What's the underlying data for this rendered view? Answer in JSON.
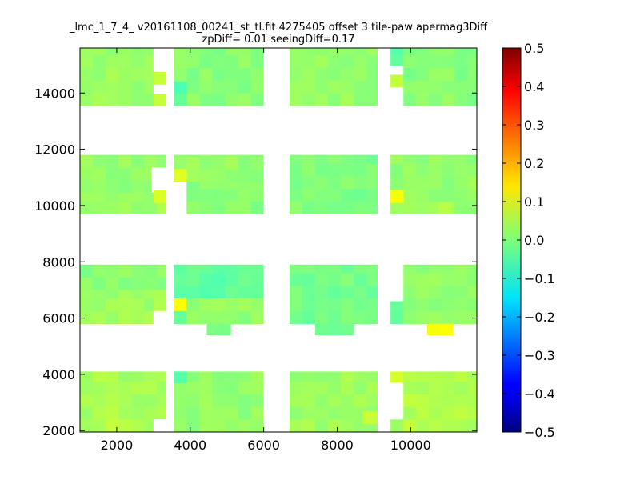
{
  "chart_data": {
    "type": "heatmap",
    "title": "_lmc_1_7_4_ v20161108_00241_st_tl.fit 4275405 offset 3 tile-paw apermag3Diff",
    "subtitle": "zpDiff= 0.01 seeingDiff=0.17",
    "xlabel": "",
    "ylabel": "",
    "xlim": [
      1000,
      11800
    ],
    "ylim": [
      1950,
      15600
    ],
    "x_ticks": [
      "2000",
      "4000",
      "6000",
      "8000",
      "10000"
    ],
    "x_tick_values": [
      2000,
      4000,
      6000,
      8000,
      10000
    ],
    "y_ticks": [
      "2000",
      "4000",
      "6000",
      "8000",
      "10000",
      "12000",
      "14000"
    ],
    "y_tick_values": [
      2000,
      4000,
      6000,
      8000,
      10000,
      12000,
      14000
    ],
    "colorbar": {
      "colormap": "jet",
      "vmin": -0.5,
      "vmax": 0.5,
      "tick_labels": [
        "0.5",
        "0.4",
        "0.3",
        "0.2",
        "0.1",
        "0.0",
        "−0.1",
        "−0.2",
        "−0.3",
        "−0.4",
        "−0.5"
      ],
      "tick_values": [
        0.5,
        0.4,
        0.3,
        0.2,
        0.1,
        0.0,
        -0.1,
        -0.2,
        -0.3,
        -0.4,
        -0.5
      ]
    },
    "grid": false,
    "base_value": 0.02,
    "regions": [
      {
        "x": [
          1000,
          3000
        ],
        "y": [
          13550,
          15600
        ],
        "value": 0.03
      },
      {
        "x": [
          3000,
          3350
        ],
        "y": [
          14300,
          14750
        ],
        "value": 0.07
      },
      {
        "x": [
          3000,
          3350
        ],
        "y": [
          13950,
          13550
        ],
        "value": 0.06
      },
      {
        "x": [
          3550,
          6000
        ],
        "y": [
          13550,
          15600
        ],
        "value": 0.01
      },
      {
        "x": [
          3550,
          3900
        ],
        "y": [
          13550,
          14400
        ],
        "value": -0.04
      },
      {
        "x": [
          6700,
          9100
        ],
        "y": [
          13550,
          15600
        ],
        "value": 0.02
      },
      {
        "x": [
          9450,
          9800
        ],
        "y": [
          14950,
          15600
        ],
        "value": -0.03
      },
      {
        "x": [
          9450,
          9800
        ],
        "y": [
          14200,
          14650
        ],
        "value": 0.07
      },
      {
        "x": [
          9800,
          11800
        ],
        "y": [
          13550,
          15600
        ],
        "value": 0.01
      },
      {
        "x": [
          1000,
          3350
        ],
        "y": [
          11350,
          11800
        ],
        "value": 0.02
      },
      {
        "x": [
          1000,
          2950
        ],
        "y": [
          10450,
          11350
        ],
        "value": 0.02
      },
      {
        "x": [
          1000,
          3350
        ],
        "y": [
          9700,
          10450
        ],
        "value": 0.03
      },
      {
        "x": [
          3000,
          3350
        ],
        "y": [
          10100,
          10550
        ],
        "value": 0.09
      },
      {
        "x": [
          3550,
          6000
        ],
        "y": [
          10850,
          11800
        ],
        "value": 0.02
      },
      {
        "x": [
          3550,
          3900
        ],
        "y": [
          10850,
          11300
        ],
        "value": 0.08
      },
      {
        "x": [
          3900,
          6000
        ],
        "y": [
          9700,
          10850
        ],
        "value": 0.01
      },
      {
        "x": [
          6700,
          9100
        ],
        "y": [
          9700,
          11800
        ],
        "value": 0.0
      },
      {
        "x": [
          9450,
          11800
        ],
        "y": [
          9700,
          11800
        ],
        "value": 0.02
      },
      {
        "x": [
          9450,
          9800
        ],
        "y": [
          10100,
          10550
        ],
        "value": 0.1
      },
      {
        "x": [
          10750,
          11100
        ],
        "y": [
          9700,
          10100
        ],
        "value": 0.05
      },
      {
        "x": [
          1000,
          3350
        ],
        "y": [
          7000,
          7900
        ],
        "value": 0.01
      },
      {
        "x": [
          1000,
          3000
        ],
        "y": [
          5800,
          7000
        ],
        "value": 0.03
      },
      {
        "x": [
          3000,
          3350
        ],
        "y": [
          6250,
          7000
        ],
        "value": 0.05
      },
      {
        "x": [
          3550,
          6000
        ],
        "y": [
          6700,
          7900
        ],
        "value": -0.03
      },
      {
        "x": [
          3550,
          3900
        ],
        "y": [
          6250,
          6700
        ],
        "value": 0.14
      },
      {
        "x": [
          3550,
          3900
        ],
        "y": [
          5800,
          6250
        ],
        "value": -0.02
      },
      {
        "x": [
          3900,
          6000
        ],
        "y": [
          5800,
          6700
        ],
        "value": 0.02
      },
      {
        "x": [
          4450,
          5100
        ],
        "y": [
          5400,
          5800
        ],
        "value": -0.01
      },
      {
        "x": [
          6700,
          9100
        ],
        "y": [
          5800,
          7900
        ],
        "value": -0.01
      },
      {
        "x": [
          7400,
          8450
        ],
        "y": [
          5400,
          5800
        ],
        "value": -0.03
      },
      {
        "x": [
          9450,
          9800
        ],
        "y": [
          5800,
          6600
        ],
        "value": -0.02
      },
      {
        "x": [
          9800,
          11800
        ],
        "y": [
          5800,
          7900
        ],
        "value": 0.02
      },
      {
        "x": [
          10450,
          11150
        ],
        "y": [
          5400,
          5800
        ],
        "value": 0.12
      },
      {
        "x": [
          1000,
          3350
        ],
        "y": [
          2400,
          4100
        ],
        "value": 0.04
      },
      {
        "x": [
          1000,
          3000
        ],
        "y": [
          1950,
          2400
        ],
        "value": 0.05
      },
      {
        "x": [
          3550,
          6000
        ],
        "y": [
          1950,
          4100
        ],
        "value": 0.02
      },
      {
        "x": [
          3550,
          3900
        ],
        "y": [
          3700,
          4100
        ],
        "value": -0.04
      },
      {
        "x": [
          6700,
          9100
        ],
        "y": [
          1950,
          4100
        ],
        "value": 0.03
      },
      {
        "x": [
          8700,
          9100
        ],
        "y": [
          2250,
          2700
        ],
        "value": 0.07
      },
      {
        "x": [
          9450,
          9800
        ],
        "y": [
          3700,
          4100
        ],
        "value": 0.09
      },
      {
        "x": [
          9450,
          9800
        ],
        "y": [
          1950,
          2400
        ],
        "value": 0.04
      },
      {
        "x": [
          9800,
          11800
        ],
        "y": [
          1950,
          4100
        ],
        "value": 0.05
      }
    ],
    "holes": [
      {
        "x": [
          3000,
          3550
        ],
        "y": [
          14750,
          15600
        ]
      },
      {
        "x": [
          3000,
          3550
        ],
        "y": [
          13950,
          14300
        ]
      },
      {
        "x": [
          3350,
          3550
        ],
        "y": [
          13550,
          15600
        ]
      },
      {
        "x": [
          6000,
          6700
        ],
        "y": [
          13550,
          15600
        ]
      },
      {
        "x": [
          9100,
          9450
        ],
        "y": [
          13550,
          15600
        ]
      },
      {
        "x": [
          9450,
          9800
        ],
        "y": [
          14650,
          14950
        ]
      },
      {
        "x": [
          9450,
          9800
        ],
        "y": [
          13550,
          14200
        ]
      },
      {
        "x": [
          2950,
          3350
        ],
        "y": [
          10550,
          11350
        ]
      },
      {
        "x": [
          3350,
          3550
        ],
        "y": [
          9700,
          11800
        ]
      },
      {
        "x": [
          3550,
          3900
        ],
        "y": [
          9700,
          10850
        ]
      },
      {
        "x": [
          6000,
          6700
        ],
        "y": [
          9700,
          11800
        ]
      },
      {
        "x": [
          9100,
          9450
        ],
        "y": [
          9700,
          11800
        ]
      },
      {
        "x": [
          3000,
          3350
        ],
        "y": [
          5800,
          6250
        ]
      },
      {
        "x": [
          3350,
          3550
        ],
        "y": [
          5800,
          7900
        ]
      },
      {
        "x": [
          6000,
          6700
        ],
        "y": [
          5800,
          7900
        ]
      },
      {
        "x": [
          9100,
          9450
        ],
        "y": [
          5800,
          7900
        ]
      },
      {
        "x": [
          9450,
          9800
        ],
        "y": [
          6600,
          7900
        ]
      },
      {
        "x": [
          3000,
          3350
        ],
        "y": [
          1950,
          2400
        ]
      },
      {
        "x": [
          3350,
          3550
        ],
        "y": [
          1950,
          4100
        ]
      },
      {
        "x": [
          6000,
          6700
        ],
        "y": [
          1950,
          4100
        ]
      },
      {
        "x": [
          9100,
          9450
        ],
        "y": [
          1950,
          4100
        ]
      },
      {
        "x": [
          9450,
          9800
        ],
        "y": [
          2400,
          3700
        ]
      }
    ]
  }
}
